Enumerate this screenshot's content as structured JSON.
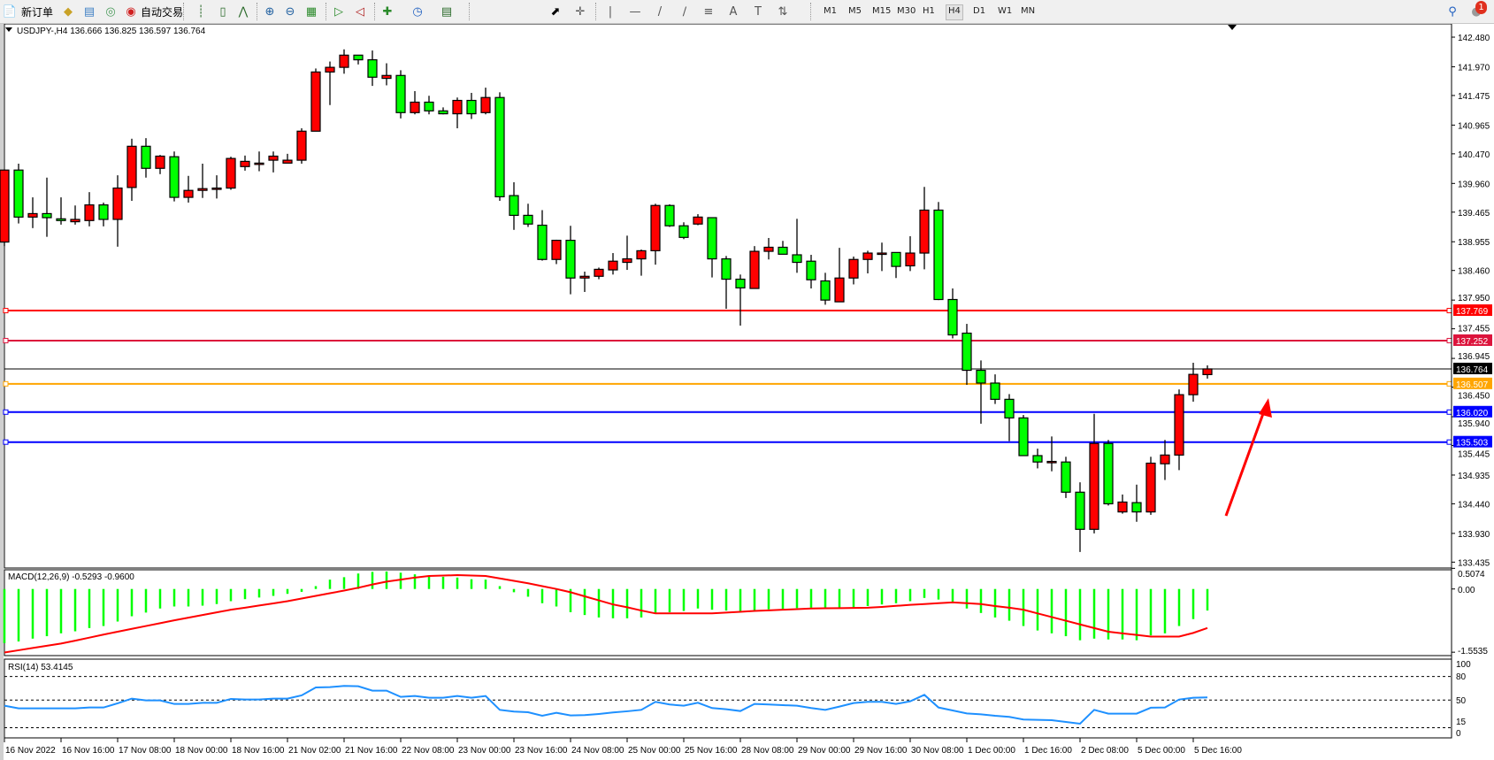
{
  "toolbar": {
    "new_order_label": "新订单",
    "auto_trading_label": "自动交易",
    "timeframes": [
      "M1",
      "M5",
      "M15",
      "M30",
      "H1",
      "H4",
      "D1",
      "W1",
      "MN"
    ],
    "active_timeframe": "H4",
    "notification_count": "1",
    "icons": [
      "new-order-icon",
      "market-watch-icon",
      "navigator-icon",
      "signals-icon",
      "auto-trading-icon",
      "bar-chart-icon",
      "candlestick-icon",
      "line-chart-icon",
      "zoom-in-icon",
      "zoom-out-icon",
      "tile-windows-icon",
      "chart-shift-icon",
      "autoscroll-icon",
      "new-chart-icon",
      "periods-icon",
      "templates-icon",
      "cursor-icon",
      "crosshair-icon",
      "vertical-line-icon",
      "horizontal-line-icon",
      "trendline-icon",
      "equidistant-channel-icon",
      "fibonacci-icon",
      "text-icon",
      "text-label-icon",
      "arrows-icon",
      "search-icon",
      "notification-icon"
    ]
  },
  "chart": {
    "header": "USDJPY-,H4  136.666 136.825 136.597 136.764",
    "macd_label": "MACD(12,26,9) -0.5293 -0.9600",
    "rsi_label": "RSI(14) 53.4145",
    "price_ticks": [
      "142.480",
      "141.970",
      "141.475",
      "140.965",
      "140.470",
      "139.960",
      "139.465",
      "138.955",
      "138.460",
      "137.950",
      "137.455",
      "136.945",
      "136.450",
      "135.940",
      "135.445",
      "134.935",
      "134.440",
      "133.930",
      "133.435"
    ],
    "macd_ticks": [
      "0.5074",
      "0.00",
      "-1.5535"
    ],
    "rsi_ticks": [
      "100",
      "80",
      "50",
      "15",
      "0"
    ],
    "time_labels": [
      "16 Nov 2022",
      "16 Nov 16:00",
      "17 Nov 08:00",
      "18 Nov 00:00",
      "18 Nov 16:00",
      "21 Nov 02:00",
      "21 Nov 16:00",
      "22 Nov 08:00",
      "23 Nov 00:00",
      "23 Nov 16:00",
      "24 Nov 08:00",
      "25 Nov 00:00",
      "25 Nov 16:00",
      "28 Nov 08:00",
      "29 Nov 00:00",
      "29 Nov 16:00",
      "30 Nov 08:00",
      "1 Dec 00:00",
      "1 Dec 16:00",
      "2 Dec 08:00",
      "5 Dec 00:00",
      "5 Dec 16:00"
    ],
    "levels": [
      {
        "price": "137.769",
        "color": "#ff0000"
      },
      {
        "price": "137.252",
        "color": "#dc143c"
      },
      {
        "price": "136.764",
        "color": "#000000",
        "bid": true
      },
      {
        "price": "136.507",
        "color": "#ffa500"
      },
      {
        "price": "136.020",
        "color": "#0000ff"
      },
      {
        "price": "135.503",
        "color": "#0000ff"
      }
    ],
    "colors": {
      "bull": "#ff0000",
      "bear": "#00ff00",
      "macd_hist": "#00ff00",
      "macd_signal": "#ff0000",
      "rsi": "#1e90ff",
      "arrow": "#ff0000"
    }
  },
  "chart_data": {
    "type": "candlestick",
    "symbol": "USDJPY-",
    "timeframe": "H4",
    "price_range": [
      133.435,
      142.48
    ],
    "ohlc": [
      [
        138.95,
        140.2,
        138.88,
        140.19
      ],
      [
        140.19,
        140.3,
        139.27,
        139.38
      ],
      [
        139.38,
        139.72,
        139.19,
        139.44
      ],
      [
        139.44,
        140.06,
        139.04,
        139.37
      ],
      [
        139.35,
        139.72,
        139.25,
        139.32
      ],
      [
        139.3,
        139.58,
        139.25,
        139.34
      ],
      [
        139.32,
        139.81,
        139.22,
        139.59
      ],
      [
        139.59,
        139.63,
        139.22,
        139.34
      ],
      [
        139.34,
        140.1,
        138.87,
        139.88
      ],
      [
        139.89,
        140.73,
        139.66,
        140.6
      ],
      [
        140.6,
        140.74,
        140.06,
        140.22
      ],
      [
        140.22,
        140.45,
        140.12,
        140.43
      ],
      [
        140.42,
        140.51,
        139.65,
        139.72
      ],
      [
        139.72,
        140.09,
        139.63,
        139.84
      ],
      [
        139.84,
        140.3,
        139.71,
        139.87
      ],
      [
        139.87,
        140.1,
        139.7,
        139.88
      ],
      [
        139.88,
        140.42,
        139.85,
        140.39
      ],
      [
        140.25,
        140.44,
        140.18,
        140.34
      ],
      [
        140.31,
        140.51,
        140.17,
        140.31
      ],
      [
        140.36,
        140.51,
        140.15,
        140.43
      ],
      [
        140.31,
        140.47,
        140.31,
        140.36
      ],
      [
        140.36,
        140.91,
        140.3,
        140.86
      ],
      [
        140.86,
        141.94,
        140.86,
        141.88
      ],
      [
        141.88,
        142.06,
        141.31,
        141.96
      ],
      [
        141.96,
        142.27,
        141.85,
        142.17
      ],
      [
        142.17,
        142.17,
        142.01,
        142.09
      ],
      [
        142.09,
        142.25,
        141.64,
        141.79
      ],
      [
        141.77,
        142.03,
        141.65,
        141.82
      ],
      [
        141.82,
        141.91,
        141.08,
        141.18
      ],
      [
        141.18,
        141.55,
        141.15,
        141.36
      ],
      [
        141.36,
        141.47,
        141.15,
        141.21
      ],
      [
        141.21,
        141.27,
        141.15,
        141.16
      ],
      [
        141.16,
        141.44,
        140.91,
        141.39
      ],
      [
        141.39,
        141.52,
        141.07,
        141.16
      ],
      [
        141.18,
        141.61,
        141.15,
        141.44
      ],
      [
        141.44,
        141.53,
        139.66,
        139.73
      ],
      [
        139.75,
        139.98,
        139.16,
        139.41
      ],
      [
        139.41,
        139.61,
        139.21,
        139.26
      ],
      [
        139.24,
        139.5,
        138.63,
        138.65
      ],
      [
        138.65,
        138.99,
        138.57,
        138.98
      ],
      [
        138.98,
        139.23,
        138.05,
        138.33
      ],
      [
        138.33,
        138.44,
        138.09,
        138.36
      ],
      [
        138.36,
        138.51,
        138.31,
        138.48
      ],
      [
        138.47,
        138.76,
        138.39,
        138.62
      ],
      [
        138.6,
        139.06,
        138.47,
        138.66
      ],
      [
        138.66,
        138.82,
        138.37,
        138.8
      ],
      [
        138.8,
        139.61,
        138.56,
        139.58
      ],
      [
        139.58,
        139.6,
        139.21,
        139.23
      ],
      [
        139.23,
        139.29,
        139.0,
        139.03
      ],
      [
        139.26,
        139.43,
        139.24,
        139.38
      ],
      [
        139.37,
        139.37,
        138.34,
        138.66
      ],
      [
        138.66,
        138.71,
        137.8,
        138.31
      ],
      [
        138.31,
        138.39,
        137.51,
        138.16
      ],
      [
        138.15,
        138.88,
        138.15,
        138.79
      ],
      [
        138.79,
        139.02,
        138.65,
        138.86
      ],
      [
        138.86,
        138.97,
        138.74,
        138.74
      ],
      [
        138.73,
        139.35,
        138.42,
        138.6
      ],
      [
        138.62,
        138.73,
        138.15,
        138.3
      ],
      [
        138.28,
        138.42,
        137.87,
        137.95
      ],
      [
        137.92,
        138.85,
        137.92,
        138.33
      ],
      [
        138.33,
        138.7,
        138.22,
        138.65
      ],
      [
        138.65,
        138.8,
        138.41,
        138.76
      ],
      [
        138.76,
        138.94,
        138.45,
        138.76
      ],
      [
        138.77,
        138.77,
        138.33,
        138.53
      ],
      [
        138.54,
        139.05,
        138.45,
        138.76
      ],
      [
        138.76,
        139.9,
        138.48,
        139.5
      ],
      [
        139.5,
        139.64,
        137.95,
        137.96
      ],
      [
        137.96,
        138.15,
        137.29,
        137.35
      ],
      [
        137.38,
        137.54,
        136.49,
        136.74
      ],
      [
        136.74,
        136.91,
        135.82,
        136.52
      ],
      [
        136.52,
        136.67,
        136.16,
        136.24
      ],
      [
        136.24,
        136.33,
        135.52,
        135.92
      ],
      [
        135.92,
        135.97,
        135.27,
        135.27
      ],
      [
        135.27,
        135.39,
        135.05,
        135.16
      ],
      [
        135.16,
        135.6,
        135.0,
        135.17
      ],
      [
        135.16,
        135.25,
        134.54,
        134.64
      ],
      [
        134.64,
        134.81,
        133.61,
        134.0
      ],
      [
        134.0,
        135.99,
        133.93,
        135.48
      ],
      [
        135.48,
        135.54,
        134.41,
        134.44
      ],
      [
        134.3,
        134.6,
        134.27,
        134.47
      ],
      [
        134.46,
        134.77,
        134.13,
        134.3
      ],
      [
        134.3,
        135.25,
        134.25,
        135.14
      ],
      [
        135.13,
        135.54,
        134.85,
        135.28
      ],
      [
        135.28,
        136.41,
        135.02,
        136.32
      ],
      [
        136.32,
        136.87,
        136.2,
        136.67
      ],
      [
        136.666,
        136.825,
        136.597,
        136.764
      ]
    ],
    "macd": {
      "range": [
        -1.5535,
        0.5074
      ],
      "histogram": [
        -1.33,
        -1.29,
        -1.22,
        -1.16,
        -1.09,
        -1.04,
        -0.96,
        -0.91,
        -0.8,
        -0.67,
        -0.58,
        -0.48,
        -0.43,
        -0.43,
        -0.41,
        -0.37,
        -0.3,
        -0.25,
        -0.21,
        -0.17,
        -0.12,
        -0.07,
        0.07,
        0.23,
        0.29,
        0.38,
        0.42,
        0.43,
        0.4,
        0.36,
        0.33,
        0.3,
        0.28,
        0.24,
        0.23,
        0.07,
        -0.08,
        -0.19,
        -0.35,
        -0.43,
        -0.57,
        -0.64,
        -0.7,
        -0.72,
        -0.72,
        -0.7,
        -0.6,
        -0.57,
        -0.54,
        -0.48,
        -0.51,
        -0.53,
        -0.55,
        -0.53,
        -0.5,
        -0.49,
        -0.47,
        -0.46,
        -0.46,
        -0.46,
        -0.46,
        -0.42,
        -0.38,
        -0.35,
        -0.3,
        -0.22,
        -0.26,
        -0.31,
        -0.48,
        -0.59,
        -0.7,
        -0.78,
        -0.91,
        -1.02,
        -1.09,
        -1.16,
        -1.26,
        -1.22,
        -1.24,
        -1.24,
        -1.26,
        -1.14,
        -1.09,
        -0.91,
        -0.74,
        -0.5293
      ],
      "signal": [
        -1.56,
        -1.505,
        -1.45,
        -1.395,
        -1.34,
        -1.27,
        -1.195,
        -1.12,
        -1.05,
        -0.98,
        -0.91,
        -0.84,
        -0.77,
        -0.705,
        -0.64,
        -0.575,
        -0.51,
        -0.46,
        -0.405,
        -0.355,
        -0.3,
        -0.235,
        -0.17,
        -0.105,
        -0.04,
        0.03,
        0.11,
        0.18,
        0.23,
        0.28,
        0.32,
        0.33,
        0.34,
        0.33,
        0.32,
        0.26,
        0.2,
        0.14,
        0.07,
        0.0,
        -0.08,
        -0.18,
        -0.28,
        -0.38,
        -0.45,
        -0.53,
        -0.6,
        -0.6,
        -0.6,
        -0.6,
        -0.6,
        -0.58,
        -0.56,
        -0.54,
        -0.525,
        -0.51,
        -0.495,
        -0.48,
        -0.475,
        -0.47,
        -0.465,
        -0.46,
        -0.44,
        -0.415,
        -0.39,
        -0.37,
        -0.35,
        -0.33,
        -0.35,
        -0.37,
        -0.42,
        -0.46,
        -0.51,
        -0.6,
        -0.69,
        -0.78,
        -0.87,
        -0.96,
        -1.05,
        -1.09,
        -1.13,
        -1.17,
        -1.17,
        -1.17,
        -1.08,
        -0.96
      ]
    },
    "rsi": {
      "levels": [
        80,
        50,
        15
      ],
      "range": [
        0,
        100
      ],
      "values": [
        42.9,
        39.5,
        39.5,
        39.5,
        39.5,
        39.5,
        40.6,
        40.6,
        45.9,
        51.9,
        49.6,
        49.6,
        45.1,
        45.1,
        46.6,
        46.6,
        51.5,
        50.7,
        50.7,
        51.9,
        51.9,
        56.0,
        66.1,
        66.5,
        68.0,
        67.6,
        62.0,
        62.0,
        54.1,
        55.2,
        53.0,
        53.0,
        55.2,
        53.0,
        55.2,
        37.6,
        35.4,
        34.6,
        30.1,
        33.9,
        30.5,
        30.9,
        32.4,
        34.3,
        35.8,
        37.6,
        47.8,
        44.4,
        42.9,
        46.6,
        39.9,
        38.4,
        36.1,
        45.1,
        44.4,
        43.6,
        42.9,
        39.9,
        37.6,
        41.8,
        46.3,
        47.8,
        47.8,
        45.1,
        48.5,
        56.7,
        40.6,
        36.9,
        33.1,
        32.0,
        30.1,
        28.7,
        25.3,
        24.9,
        24.5,
        22.3,
        20.0,
        37.6,
        32.8,
        32.8,
        32.8,
        40.3,
        40.6,
        50.7,
        53.0,
        53.4145
      ]
    }
  }
}
